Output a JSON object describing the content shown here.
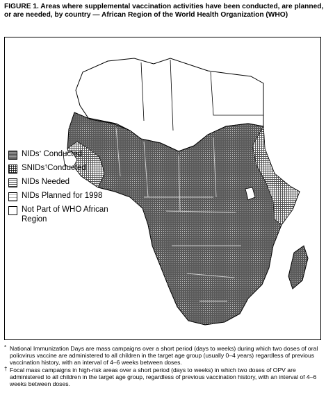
{
  "figure": {
    "title": "FIGURE 1. Areas where supplemental vaccination activities have been conducted, are planned, or are needed, by country — African Region of the World Health Organization (WHO)"
  },
  "legend": {
    "items": [
      {
        "label": "NIDs",
        "suffix": " Conducted",
        "mark": "*",
        "pattern": "dense-cross"
      },
      {
        "label": "SNIDs",
        "suffix": "Conducted",
        "mark": "†",
        "pattern": "grid"
      },
      {
        "label": "NIDs Needed",
        "pattern": "horizontal-lines"
      },
      {
        "label": "NIDs Planned for 1998",
        "pattern": "light"
      },
      {
        "label": "Not Part of WHO African Region",
        "pattern": "white"
      }
    ]
  },
  "footnotes": [
    {
      "mark": "*",
      "text": "National Immunization Days are mass campaigns over a short period (days to weeks) during which two doses of oral poliovirus vaccine are administered to all children in the target age group (usually 0–4 years) regardless of previous vaccination history, with an interval of 4–6 weeks between doses."
    },
    {
      "mark": "†",
      "text": "Focal mass campaigns in high-risk areas over a short period (days to weeks) in which two doses of OPV are administered to all children in the target age group, regardless of previous vaccination history, with an interval of 4–6 weeks between doses."
    }
  ],
  "colors": {
    "ink": "#000000",
    "paper": "#ffffff",
    "fill": "#6e6e6e"
  }
}
